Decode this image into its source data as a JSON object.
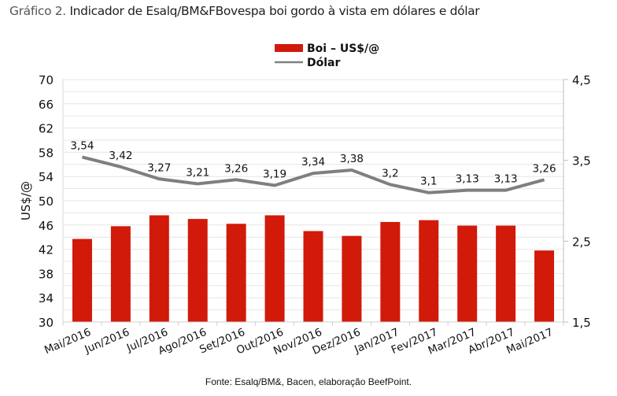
{
  "header": {
    "title_prefix": "Gráfico 2.",
    "title_main": " Indicador de Esalq/BM&FBovespa boi gordo à vista em dólares e dólar"
  },
  "footer": {
    "source": "Fonte: Esalq/BM&, Bacen, elaboração BeefPoint."
  },
  "chart_data": {
    "type": "bar+line",
    "title": "Indicador de Esalq/BM&FBovespa boi gordo à vista em dólares e dólar",
    "categories": [
      "Mai/2016",
      "Jun/2016",
      "Jul/2016",
      "Ago/2016",
      "Set/2016",
      "Out/2016",
      "Nov/2016",
      "Dez/2016",
      "Jan/2017",
      "Fev/2017",
      "Mar/2017",
      "Abr/2017",
      "Mai/2017"
    ],
    "series": [
      {
        "name": "Boi – US$/@",
        "type": "bar",
        "axis": "left",
        "color": "#d11a0a",
        "values": [
          43.7,
          45.8,
          47.6,
          47.0,
          46.2,
          47.6,
          45.0,
          44.2,
          46.5,
          46.8,
          45.9,
          45.9,
          41.8
        ]
      },
      {
        "name": "Dólar",
        "type": "line",
        "axis": "right",
        "color": "#7f7f7f",
        "values": [
          3.54,
          3.42,
          3.27,
          3.21,
          3.26,
          3.19,
          3.34,
          3.38,
          3.2,
          3.1,
          3.13,
          3.13,
          3.26
        ],
        "labels": [
          "3,54",
          "3,42",
          "3,27",
          "3,21",
          "3,26",
          "3,19",
          "3,34",
          "3,38",
          "3,2",
          "3,1",
          "3,13",
          "3,13",
          "3,26"
        ]
      }
    ],
    "ylabel": "US$/@",
    "ylim": [
      30,
      70
    ],
    "yticks": [
      "30",
      "34",
      "38",
      "42",
      "46",
      "50",
      "54",
      "58",
      "62",
      "66",
      "70"
    ],
    "y2lim": [
      1.5,
      4.5
    ],
    "y2ticks": [
      "1,5",
      "2,5",
      "3,5",
      "4,5"
    ],
    "grid": true,
    "legend_position": "top-center"
  }
}
